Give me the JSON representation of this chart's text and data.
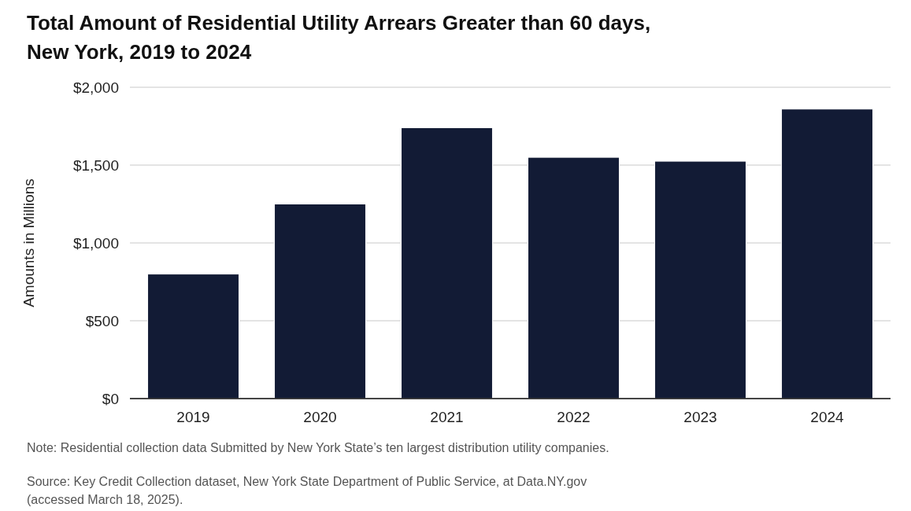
{
  "chart_data": {
    "type": "bar",
    "title": "Total Amount of Residential Utility Arrears Greater than 60 days,\nNew York, 2019 to 2024",
    "ylabel": "Amounts in Millions",
    "categories": [
      "2019",
      "2020",
      "2021",
      "2022",
      "2023",
      "2024"
    ],
    "values": [
      800,
      1250,
      1740,
      1550,
      1525,
      1860
    ],
    "color": "#121b35",
    "ylim": [
      0,
      2000
    ],
    "yticks": [
      {
        "value": 0,
        "label": "$0"
      },
      {
        "value": 500,
        "label": "$500"
      },
      {
        "value": 1000,
        "label": "$1,000"
      },
      {
        "value": 1500,
        "label": "$1,500"
      },
      {
        "value": 2000,
        "label": "$2,000"
      }
    ],
    "grid": "y",
    "annotations": [
      "Note: Residential collection data Submitted by New York State’s ten largest distribution utility companies.",
      "Source: Key Credit Collection dataset, New York State Department of Public Service, at Data.NY.gov\n(accessed March 18, 2025)."
    ]
  }
}
